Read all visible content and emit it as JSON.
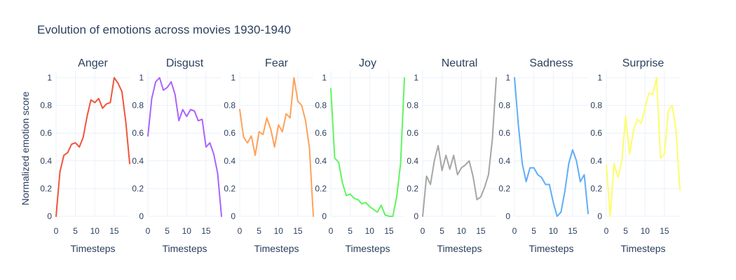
{
  "chart_data": {
    "type": "line",
    "title": "Evolution of emotions across movies 1930-1940",
    "ylabel": "Normalized emotion score",
    "xlabel": "Timesteps",
    "xlim": [
      0,
      19
    ],
    "ylim": [
      0,
      1.05
    ],
    "x_ticks": [
      0,
      5,
      10,
      15
    ],
    "y_ticks": [
      0,
      0.2,
      0.4,
      0.6,
      0.8,
      1
    ],
    "y_tick_labels": [
      "0",
      "0.2",
      "0.4",
      "0.6",
      "0.8",
      "1"
    ],
    "grid": true,
    "x": [
      0,
      1,
      2,
      3,
      4,
      5,
      6,
      7,
      8,
      9,
      10,
      11,
      12,
      13,
      14,
      15,
      16,
      17,
      18,
      19
    ],
    "panels": [
      {
        "title": "Anger",
        "color": "#ef553b",
        "values": [
          0.0,
          0.32,
          0.44,
          0.46,
          0.52,
          0.53,
          0.5,
          0.57,
          0.72,
          0.84,
          0.82,
          0.85,
          0.78,
          0.81,
          0.82,
          1.0,
          0.96,
          0.9,
          0.68,
          0.38
        ]
      },
      {
        "title": "Disgust",
        "color": "#ab63fa",
        "values": [
          0.58,
          0.85,
          0.97,
          1.0,
          0.91,
          0.93,
          0.97,
          0.88,
          0.69,
          0.77,
          0.72,
          0.77,
          0.76,
          0.69,
          0.7,
          0.5,
          0.53,
          0.45,
          0.31,
          0.0
        ]
      },
      {
        "title": "Fear",
        "color": "#ffa15a",
        "values": [
          0.77,
          0.57,
          0.53,
          0.58,
          0.44,
          0.61,
          0.59,
          0.71,
          0.63,
          0.5,
          0.66,
          0.61,
          0.74,
          0.71,
          1.0,
          0.83,
          0.8,
          0.69,
          0.49,
          0.0
        ]
      },
      {
        "title": "Joy",
        "color": "#5ef55e",
        "values": [
          0.92,
          0.42,
          0.39,
          0.24,
          0.15,
          0.16,
          0.13,
          0.12,
          0.09,
          0.1,
          0.07,
          0.05,
          0.03,
          0.08,
          0.01,
          0.0,
          0.0,
          0.14,
          0.38,
          1.0
        ]
      },
      {
        "title": "Neutral",
        "color": "#a6a6a6",
        "values": [
          0.0,
          0.29,
          0.23,
          0.4,
          0.51,
          0.33,
          0.44,
          0.34,
          0.44,
          0.3,
          0.35,
          0.37,
          0.4,
          0.29,
          0.12,
          0.14,
          0.21,
          0.3,
          0.56,
          1.0
        ]
      },
      {
        "title": "Sadness",
        "color": "#5fadf5",
        "values": [
          1.0,
          0.66,
          0.38,
          0.25,
          0.35,
          0.35,
          0.3,
          0.28,
          0.23,
          0.23,
          0.1,
          0.0,
          0.03,
          0.18,
          0.38,
          0.48,
          0.4,
          0.25,
          0.3,
          0.02
        ]
      },
      {
        "title": "Surprise",
        "color": "#fdfd6a",
        "values": [
          0.37,
          0.0,
          0.38,
          0.28,
          0.4,
          0.72,
          0.45,
          0.62,
          0.7,
          0.67,
          0.78,
          0.89,
          0.88,
          1.0,
          0.42,
          0.45,
          0.76,
          0.8,
          0.62,
          0.19
        ]
      }
    ]
  }
}
